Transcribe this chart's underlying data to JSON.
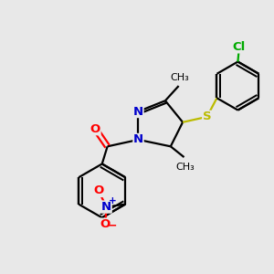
{
  "background_color": "#e8e8e8",
  "bond_color": "#000000",
  "N_color": "#0000cc",
  "O_color": "#ff0000",
  "S_color": "#bbbb00",
  "Cl_color": "#00aa00",
  "line_width": 1.6,
  "font_size": 9.5,
  "figsize": [
    3.0,
    3.0
  ],
  "dpi": 100,
  "xlim": [
    0,
    10
  ],
  "ylim": [
    0,
    10
  ]
}
